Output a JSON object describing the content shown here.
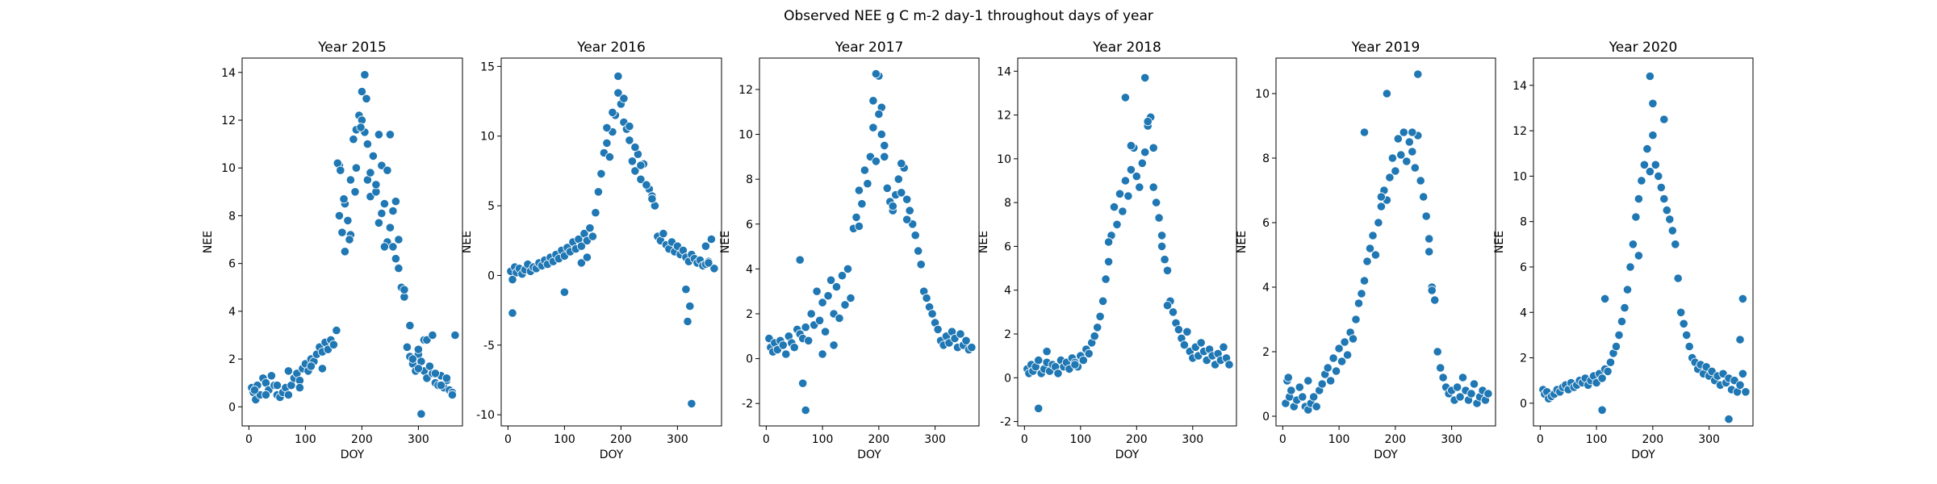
{
  "figure": {
    "title": "Observed NEE g C m-2 day-1 throughout days of year"
  },
  "colors": {
    "points": "#1f77b4",
    "point_edge": "#ffffff"
  },
  "chart_data": [
    {
      "type": "scatter",
      "title": "Year 2015",
      "xlabel": "DOY",
      "ylabel": "NEE",
      "xlim": [
        -12,
        378
      ],
      "ylim": [
        -0.8,
        14.6
      ],
      "xticks": [
        0,
        100,
        200,
        300
      ],
      "yticks": [
        0,
        2,
        4,
        6,
        8,
        10,
        12,
        14
      ],
      "grid": false,
      "x": [
        5,
        8,
        12,
        15,
        20,
        25,
        30,
        35,
        40,
        45,
        50,
        55,
        60,
        65,
        70,
        75,
        80,
        85,
        90,
        95,
        100,
        105,
        110,
        115,
        120,
        125,
        130,
        135,
        140,
        145,
        150,
        155,
        160,
        165,
        170,
        175,
        180,
        185,
        190,
        195,
        200,
        205,
        210,
        215,
        220,
        225,
        230,
        235,
        240,
        245,
        250,
        255,
        260,
        265,
        270,
        275,
        280,
        285,
        290,
        295,
        300,
        305,
        310,
        315,
        320,
        325,
        330,
        335,
        340,
        345,
        350,
        355,
        360,
        365,
        10,
        30,
        50,
        70,
        90,
        110,
        130,
        150,
        160,
        170,
        180,
        190,
        200,
        205,
        210,
        215,
        220,
        230,
        240,
        250,
        260,
        270,
        290,
        300,
        310,
        320,
        330,
        340,
        350,
        360,
        157,
        162,
        168,
        178,
        188,
        198,
        208,
        225,
        235,
        245,
        255,
        265,
        275,
        285,
        300,
        305,
        315,
        325
      ],
      "y": [
        0.8,
        0.6,
        0.3,
        0.9,
        0.5,
        1.2,
        1.0,
        0.7,
        1.3,
        0.9,
        0.5,
        0.4,
        0.6,
        0.8,
        0.5,
        0.9,
        1.2,
        1.4,
        1.1,
        1.6,
        1.8,
        1.5,
        2.0,
        1.9,
        2.2,
        2.5,
        2.3,
        2.7,
        2.4,
        2.8,
        2.6,
        3.2,
        8.0,
        7.3,
        6.5,
        7.8,
        9.5,
        11.2,
        10.0,
        12.2,
        13.2,
        11.5,
        9.5,
        8.8,
        10.5,
        9.0,
        11.4,
        10.1,
        8.5,
        6.9,
        7.5,
        8.2,
        6.2,
        5.8,
        5.0,
        4.6,
        2.5,
        2.1,
        1.8,
        1.5,
        2.2,
        1.9,
        1.5,
        1.2,
        1.7,
        1.4,
        1.0,
        0.9,
        1.3,
        0.8,
        1.1,
        0.7,
        0.6,
        3.0,
        0.7,
        0.5,
        0.9,
        1.5,
        0.8,
        1.7,
        1.6,
        2.6,
        10.1,
        8.5,
        7.2,
        11.6,
        12.0,
        13.9,
        11.0,
        9.8,
        10.5,
        7.7,
        6.7,
        11.4,
        8.6,
        5.0,
        2.0,
        1.6,
        2.8,
        1.7,
        1.4,
        0.9,
        1.2,
        0.5,
        10.2,
        9.9,
        8.7,
        7.0,
        9.0,
        11.7,
        12.9,
        9.3,
        8.1,
        9.9,
        6.7,
        7.0,
        4.9,
        3.4,
        2.4,
        -0.3,
        2.8,
        3.0
      ]
    },
    {
      "type": "scatter",
      "title": "Year 2016",
      "xlabel": "DOY",
      "ylabel": "NEE",
      "xlim": [
        -12,
        378
      ],
      "ylim": [
        -10.8,
        15.6
      ],
      "xticks": [
        0,
        100,
        200,
        300
      ],
      "yticks": [
        -10,
        -5,
        0,
        5,
        10,
        15
      ],
      "grid": false,
      "x": [
        5,
        8,
        12,
        15,
        20,
        25,
        30,
        35,
        40,
        45,
        50,
        55,
        60,
        65,
        70,
        75,
        80,
        85,
        90,
        95,
        100,
        105,
        110,
        115,
        120,
        125,
        130,
        135,
        140,
        145,
        150,
        155,
        160,
        165,
        170,
        175,
        180,
        185,
        190,
        195,
        200,
        205,
        210,
        215,
        220,
        225,
        230,
        235,
        240,
        245,
        250,
        255,
        260,
        265,
        270,
        275,
        280,
        285,
        290,
        295,
        300,
        305,
        310,
        315,
        320,
        325,
        330,
        335,
        340,
        345,
        350,
        355,
        360,
        365,
        8,
        100,
        130,
        140,
        175,
        185,
        195,
        205,
        215,
        225,
        235,
        245,
        255,
        315,
        318,
        322,
        325,
        350,
        355
      ],
      "y": [
        0.3,
        -2.7,
        0.6,
        0.2,
        0.5,
        0.1,
        0.4,
        0.8,
        0.3,
        0.6,
        0.5,
        0.9,
        0.7,
        1.1,
        0.8,
        1.3,
        1.0,
        1.5,
        1.2,
        1.8,
        1.4,
        2.0,
        1.7,
        2.4,
        1.9,
        2.6,
        2.1,
        3.0,
        2.5,
        3.4,
        2.8,
        4.5,
        6.0,
        7.3,
        8.8,
        9.5,
        8.5,
        10.3,
        11.5,
        13.1,
        12.3,
        11.0,
        10.5,
        9.7,
        8.2,
        7.5,
        8.7,
        6.9,
        8.0,
        6.5,
        6.2,
        5.7,
        5.0,
        2.8,
        2.5,
        3.0,
        2.2,
        1.9,
        2.4,
        1.7,
        2.1,
        1.5,
        1.8,
        1.3,
        1.0,
        1.5,
        1.2,
        0.9,
        1.1,
        0.7,
        0.8,
        1.0,
        2.6,
        0.5,
        -0.3,
        -1.2,
        0.9,
        1.3,
        10.6,
        11.7,
        14.3,
        12.7,
        10.7,
        9.2,
        7.9,
        6.5,
        5.5,
        -1.0,
        -3.3,
        -2.2,
        -9.2,
        2.1,
        0.9
      ]
    },
    {
      "type": "scatter",
      "title": "Year 2017",
      "xlabel": "DOY",
      "ylabel": "NEE",
      "xlim": [
        -12,
        378
      ],
      "ylim": [
        -3.0,
        13.4
      ],
      "xticks": [
        0,
        100,
        200,
        300
      ],
      "yticks": [
        -2,
        0,
        2,
        4,
        6,
        8,
        10,
        12
      ],
      "grid": false,
      "x": [
        5,
        8,
        12,
        15,
        20,
        25,
        30,
        35,
        40,
        45,
        50,
        55,
        60,
        65,
        70,
        75,
        80,
        85,
        90,
        95,
        100,
        105,
        110,
        115,
        120,
        125,
        130,
        135,
        140,
        145,
        150,
        155,
        160,
        165,
        170,
        175,
        180,
        185,
        190,
        195,
        200,
        205,
        210,
        215,
        220,
        225,
        230,
        235,
        240,
        245,
        250,
        255,
        260,
        265,
        270,
        275,
        280,
        285,
        290,
        295,
        300,
        305,
        310,
        315,
        320,
        325,
        330,
        335,
        340,
        345,
        350,
        355,
        360,
        365,
        60,
        65,
        70,
        100,
        120,
        150,
        165,
        190,
        195,
        200,
        205,
        210,
        225,
        240,
        250
      ],
      "y": [
        0.9,
        0.5,
        0.3,
        0.7,
        0.4,
        0.8,
        0.6,
        0.2,
        1.0,
        0.7,
        0.5,
        1.3,
        1.1,
        0.9,
        1.4,
        0.8,
        2.0,
        1.5,
        3.0,
        1.7,
        2.5,
        1.2,
        2.8,
        3.5,
        2.0,
        3.2,
        1.8,
        3.7,
        2.4,
        4.0,
        2.7,
        5.8,
        6.3,
        7.5,
        6.9,
        8.4,
        7.8,
        9.0,
        10.3,
        8.8,
        12.6,
        11.2,
        9.5,
        7.6,
        7.0,
        6.6,
        7.3,
        8.0,
        7.4,
        8.5,
        7.1,
        6.6,
        6.0,
        5.5,
        4.8,
        4.2,
        3.0,
        2.7,
        2.3,
        2.0,
        1.6,
        1.3,
        0.8,
        0.6,
        1.0,
        0.7,
        1.2,
        0.9,
        0.5,
        1.1,
        0.6,
        0.8,
        0.4,
        0.5,
        4.4,
        -1.1,
        -2.3,
        0.2,
        0.6,
        2.7,
        5.9,
        11.5,
        12.7,
        10.9,
        10.0,
        9.0,
        6.8,
        8.7,
        6.2
      ]
    },
    {
      "type": "scatter",
      "title": "Year 2018",
      "xlabel": "DOY",
      "ylabel": "NEE",
      "xlim": [
        -12,
        378
      ],
      "ylim": [
        -2.2,
        14.6
      ],
      "xticks": [
        0,
        100,
        200,
        300
      ],
      "yticks": [
        -2,
        0,
        2,
        4,
        6,
        8,
        10,
        12,
        14
      ],
      "grid": false,
      "x": [
        5,
        8,
        12,
        15,
        20,
        25,
        30,
        35,
        40,
        45,
        50,
        55,
        60,
        65,
        70,
        75,
        80,
        85,
        90,
        95,
        100,
        105,
        110,
        115,
        120,
        125,
        130,
        135,
        140,
        145,
        150,
        155,
        160,
        165,
        170,
        175,
        180,
        185,
        190,
        195,
        200,
        205,
        210,
        215,
        220,
        225,
        230,
        235,
        240,
        245,
        250,
        255,
        260,
        265,
        270,
        275,
        280,
        285,
        290,
        295,
        300,
        305,
        310,
        315,
        320,
        325,
        330,
        335,
        340,
        345,
        350,
        355,
        360,
        365,
        25,
        40,
        90,
        150,
        180,
        190,
        215,
        220,
        230,
        245,
        255
      ],
      "y": [
        0.4,
        0.2,
        0.6,
        0.3,
        0.5,
        0.8,
        0.2,
        0.4,
        0.7,
        0.3,
        0.6,
        0.5,
        0.2,
        0.8,
        0.5,
        0.7,
        0.4,
        0.9,
        0.7,
        0.5,
        1.0,
        0.8,
        1.3,
        1.1,
        1.6,
        1.9,
        2.3,
        2.8,
        3.5,
        4.5,
        5.3,
        6.5,
        7.8,
        7.0,
        8.4,
        7.6,
        9.0,
        8.3,
        9.5,
        10.5,
        9.2,
        8.7,
        9.8,
        10.3,
        11.5,
        11.9,
        10.5,
        8.0,
        7.3,
        6.5,
        5.4,
        4.9,
        3.5,
        3.0,
        2.5,
        2.2,
        1.8,
        1.5,
        2.1,
        1.2,
        0.9,
        1.4,
        1.0,
        1.6,
        1.2,
        0.8,
        1.3,
        1.0,
        0.6,
        1.1,
        0.8,
        1.4,
        0.9,
        0.6,
        -1.4,
        1.2,
        0.6,
        6.2,
        12.8,
        10.6,
        13.7,
        11.7,
        8.7,
        6.0,
        3.3
      ]
    },
    {
      "type": "scatter",
      "title": "Year 2019",
      "xlabel": "DOY",
      "ylabel": "NEE",
      "xlim": [
        -12,
        378
      ],
      "ylim": [
        -0.3,
        11.1
      ],
      "xticks": [
        0,
        100,
        200,
        300
      ],
      "yticks": [
        0,
        2,
        4,
        6,
        8,
        10
      ],
      "grid": false,
      "x": [
        5,
        8,
        12,
        15,
        20,
        25,
        30,
        35,
        40,
        45,
        50,
        55,
        60,
        65,
        70,
        75,
        80,
        85,
        90,
        95,
        100,
        105,
        110,
        115,
        120,
        125,
        130,
        135,
        140,
        145,
        150,
        155,
        160,
        165,
        170,
        175,
        180,
        185,
        190,
        195,
        200,
        205,
        210,
        215,
        220,
        225,
        230,
        235,
        240,
        245,
        250,
        255,
        260,
        265,
        270,
        275,
        280,
        285,
        290,
        295,
        300,
        305,
        310,
        315,
        320,
        325,
        330,
        335,
        340,
        345,
        350,
        355,
        360,
        365,
        10,
        45,
        145,
        175,
        185,
        230,
        240,
        260,
        265
      ],
      "y": [
        0.4,
        1.1,
        0.6,
        0.8,
        0.3,
        0.5,
        0.9,
        0.6,
        0.3,
        0.2,
        0.4,
        0.6,
        0.3,
        0.8,
        1.0,
        1.3,
        1.5,
        1.1,
        1.8,
        1.4,
        2.1,
        1.7,
        2.3,
        1.9,
        2.6,
        2.4,
        3.0,
        3.5,
        3.8,
        4.2,
        4.8,
        5.2,
        5.6,
        5.0,
        6.0,
        6.5,
        7.0,
        6.7,
        7.4,
        8.0,
        7.6,
        8.6,
        8.1,
        8.8,
        7.9,
        8.5,
        8.2,
        7.7,
        8.7,
        7.3,
        6.8,
        6.2,
        5.5,
        4.0,
        3.6,
        2.0,
        1.5,
        1.2,
        0.9,
        0.7,
        0.8,
        0.5,
        0.9,
        0.6,
        1.2,
        0.8,
        0.5,
        0.7,
        1.0,
        0.4,
        0.6,
        0.8,
        0.5,
        0.7,
        1.2,
        1.1,
        8.8,
        6.8,
        10.0,
        8.8,
        10.6,
        5.1,
        3.9
      ]
    },
    {
      "type": "scatter",
      "title": "Year 2020",
      "xlabel": "DOY",
      "ylabel": "NEE",
      "xlim": [
        -12,
        378
      ],
      "ylim": [
        -1.0,
        15.2
      ],
      "xticks": [
        0,
        100,
        200,
        300
      ],
      "yticks": [
        0,
        2,
        4,
        6,
        8,
        10,
        12,
        14
      ],
      "grid": false,
      "x": [
        5,
        8,
        12,
        15,
        20,
        25,
        30,
        35,
        40,
        45,
        50,
        55,
        60,
        65,
        70,
        75,
        80,
        85,
        90,
        95,
        100,
        105,
        110,
        115,
        120,
        125,
        130,
        135,
        140,
        145,
        150,
        155,
        160,
        165,
        170,
        175,
        180,
        185,
        190,
        195,
        200,
        205,
        210,
        215,
        220,
        225,
        230,
        235,
        240,
        245,
        250,
        255,
        260,
        265,
        270,
        275,
        280,
        285,
        290,
        295,
        300,
        305,
        310,
        315,
        320,
        325,
        330,
        335,
        340,
        345,
        350,
        355,
        360,
        365,
        110,
        115,
        175,
        195,
        200,
        220,
        245,
        335,
        355,
        360
      ],
      "y": [
        0.6,
        0.4,
        0.5,
        0.2,
        0.3,
        0.4,
        0.6,
        0.5,
        0.7,
        0.8,
        0.6,
        0.9,
        0.7,
        0.8,
        1.0,
        0.9,
        1.1,
        0.8,
        1.0,
        1.2,
        0.9,
        1.3,
        1.1,
        1.5,
        1.4,
        1.8,
        2.2,
        2.5,
        3.0,
        3.6,
        4.2,
        5.0,
        6.0,
        7.0,
        8.2,
        9.0,
        9.8,
        10.5,
        11.2,
        10.2,
        11.8,
        10.5,
        10.0,
        9.5,
        9.0,
        8.5,
        8.1,
        7.6,
        7.0,
        5.5,
        4.0,
        3.5,
        3.0,
        2.5,
        2.0,
        1.8,
        1.5,
        1.7,
        1.3,
        1.6,
        1.2,
        1.4,
        1.0,
        1.2,
        0.8,
        1.3,
        0.9,
        1.1,
        0.6,
        1.0,
        0.5,
        0.8,
        1.3,
        0.5,
        -0.3,
        4.6,
        6.5,
        14.4,
        13.2,
        12.5,
        5.5,
        -0.7,
        2.8,
        4.6
      ]
    }
  ]
}
